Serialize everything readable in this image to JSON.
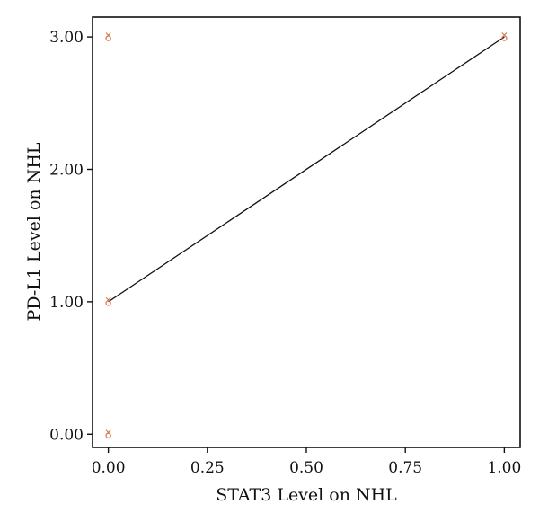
{
  "chart_data": {
    "type": "scatter",
    "title": "",
    "xlabel": "STAT3 Level on NHL",
    "ylabel": "PD-L1 Level on NHL",
    "xlim": [
      -0.04,
      1.04
    ],
    "ylim": [
      -0.1,
      3.15
    ],
    "x_ticks": [
      0,
      0.25,
      0.5,
      0.75,
      1.0
    ],
    "x_tick_labels": [
      "0.00",
      "0.25",
      "0.50",
      "0.75",
      "1.00"
    ],
    "y_ticks": [
      0,
      1,
      2,
      3
    ],
    "y_tick_labels": [
      "0.00",
      "1.00",
      "2.00",
      "3.00"
    ],
    "grid": false,
    "marker_color": "#d9774b",
    "line_color": "#111111",
    "points": [
      {
        "x": 0,
        "y": 3
      },
      {
        "x": 0,
        "y": 1
      },
      {
        "x": 0,
        "y": 0
      },
      {
        "x": 1,
        "y": 3
      }
    ],
    "fit_line": {
      "x": [
        0,
        1
      ],
      "y": [
        1,
        3
      ]
    }
  }
}
